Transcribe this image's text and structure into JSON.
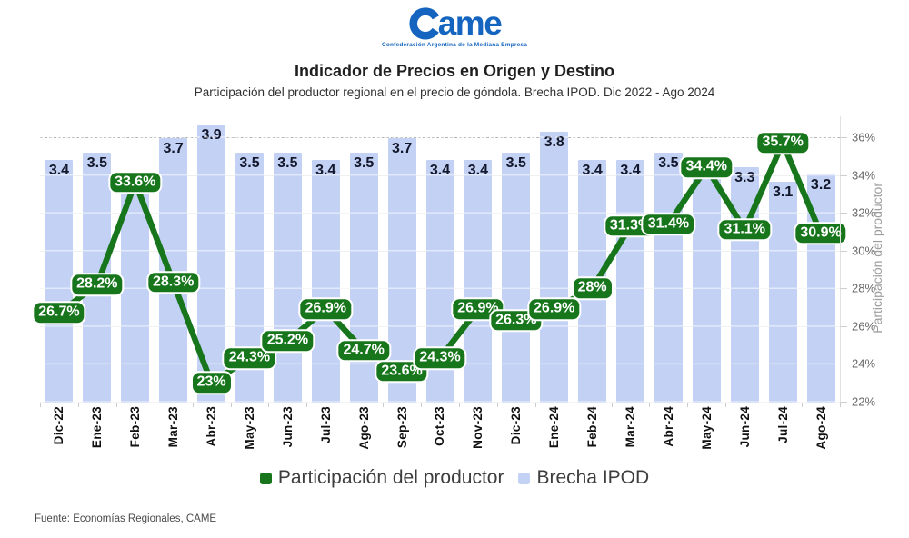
{
  "logo": {
    "ame_text": "ame",
    "tagline": "Confederación Argentina de la Mediana Empresa",
    "color": "#1565c0"
  },
  "header": {
    "title": "Indicador de Precios en Origen y Destino",
    "subtitle": "Participación del productor regional en el precio de góndola. Brecha IPOD. Dic 2022 - Ago 2024"
  },
  "chart_data": {
    "type": "bar+line combo",
    "categories": [
      "Dic-22",
      "Ene-23",
      "Feb-23",
      "Mar-23",
      "Abr-23",
      "May-23",
      "Jun-23",
      "Jul-23",
      "Ago-23",
      "Sep-23",
      "Oct-23",
      "Nov-23",
      "Dic-23",
      "Ene-24",
      "Feb-24",
      "Mar-24",
      "Abr-24",
      "May-24",
      "Jun-24",
      "Jul-24",
      "Ago-24"
    ],
    "series": [
      {
        "name": "Brecha IPOD",
        "type": "bar",
        "color": "#c3d2f4",
        "values": [
          3.4,
          3.5,
          3.0,
          3.7,
          3.9,
          3.5,
          3.5,
          3.4,
          3.5,
          3.7,
          3.4,
          3.4,
          3.5,
          3.8,
          3.4,
          3.4,
          3.5,
          3.2,
          3.3,
          3.1,
          3.2
        ],
        "labels": [
          "3.4",
          "3.5",
          "",
          "3.7",
          "3.9",
          "3.5",
          "3.5",
          "3.4",
          "3.5",
          "3.7",
          "3.4",
          "3.4",
          "3.5",
          "3.8",
          "3.4",
          "3.4",
          "3.5",
          "",
          "3.3",
          "3.1",
          "3.2"
        ]
      },
      {
        "name": "Participación del productor",
        "type": "line",
        "color": "#17761b",
        "unit": "%",
        "values": [
          26.7,
          28.2,
          33.6,
          28.3,
          23,
          24.3,
          25.2,
          26.9,
          24.7,
          23.6,
          24.3,
          26.9,
          26.3,
          26.9,
          28,
          31.3,
          31.4,
          34.4,
          31.1,
          35.7,
          30.9
        ],
        "labels": [
          "26.7%",
          "28.2%",
          "33.6%",
          "28.3%",
          "23%",
          "24.3%",
          "25.2%",
          "26.9%",
          "24.7%",
          "23.6%",
          "24.3%",
          "26.9%",
          "26.3%",
          "26.9%",
          "28%",
          "31.3%",
          "31.4%",
          "34.4%",
          "31.1%",
          "35.7%",
          "30.9%"
        ]
      }
    ],
    "y_axis_right": {
      "label": "Participación del productor",
      "tick_labels": [
        "22%",
        "24%",
        "26%",
        "28%",
        "30%",
        "32%",
        "34%",
        "36%"
      ],
      "tick_values": [
        22,
        24,
        26,
        28,
        30,
        32,
        34,
        36
      ],
      "min": 22,
      "max": 36,
      "dashed_top_gridline_at": 36
    },
    "bar_axis_hidden": {
      "min": 0,
      "max": 4.05
    },
    "grid": "horizontal, faint",
    "legend_position": "bottom-center"
  },
  "legend": {
    "items": [
      {
        "label": "Participación del productor",
        "color": "#17761b"
      },
      {
        "label": "Brecha IPOD",
        "color": "#c3d2f4"
      }
    ]
  },
  "footer": {
    "source": "Fuente: Economías Regionales, CAME"
  }
}
